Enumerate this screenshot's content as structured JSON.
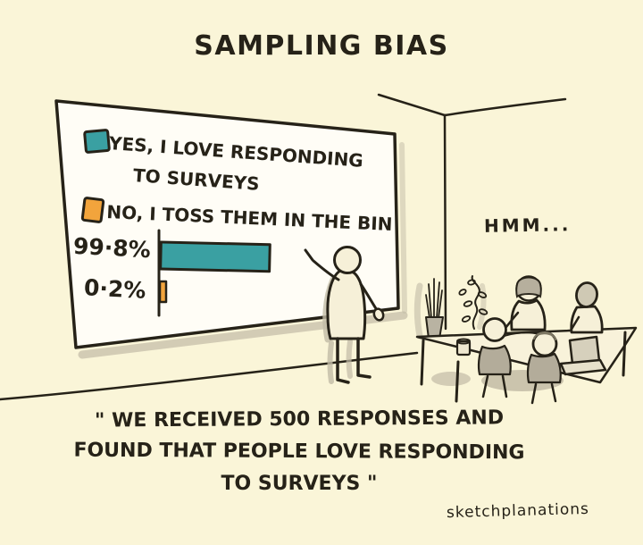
{
  "title": "SAMPLING BIAS",
  "chart_data": {
    "type": "bar",
    "orientation": "horizontal",
    "title": "",
    "categories": [
      "YES, I LOVE RESPONDING TO SURVEYS",
      "NO, I TOSS THEM IN THE BIN"
    ],
    "values": [
      99.8,
      0.2
    ],
    "value_labels": [
      "99·8%",
      "0·2%"
    ],
    "series_colors": [
      "#3aa0a2",
      "#f2a43c"
    ],
    "xlim": [
      0,
      100
    ],
    "grid": false,
    "legend_position": "top"
  },
  "board": {
    "legend_yes_line1": "YES, I LOVE RESPONDING",
    "legend_yes_line2": "TO SURVEYS",
    "legend_no": "NO, I TOSS THEM IN THE BIN",
    "pct_yes": "99·8%",
    "pct_no": "0·2%"
  },
  "speech": {
    "hmm": "HMM..."
  },
  "caption": {
    "line1": "\" WE RECEIVED 500 RESPONSES AND",
    "line2": "FOUND THAT PEOPLE LOVE RESPONDING",
    "line3": "TO SURVEYS \""
  },
  "signature": "sketchplanations",
  "colors": {
    "background": "#faf5d8",
    "ink": "#262218",
    "teal": "#3aa0a2",
    "orange": "#f2a43c",
    "board_white": "#fffdf6",
    "shadow_gray": "#c2bba6"
  }
}
